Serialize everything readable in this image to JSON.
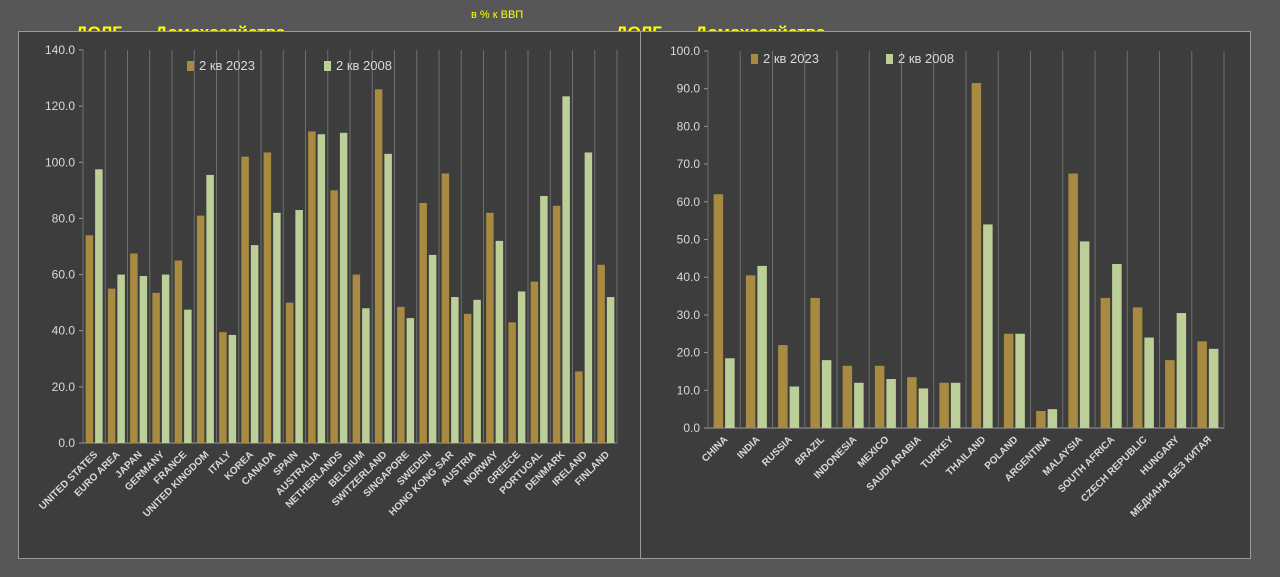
{
  "header": {
    "left_debt": "ДОЛГ",
    "left_sector": "__Домохозяйства",
    "unit_note": "в % к ВВП",
    "right_debt": "ДОЛГ",
    "right_sector": "__Домохозяйства"
  },
  "colors": {
    "series_2023": "#a88a40",
    "series_2008": "#bccf98",
    "axis_text": "#d9d9d9",
    "grid": "#6e6e6e"
  },
  "chart_data": [
    {
      "type": "bar",
      "title": "ДОЛГ __Домохозяйства",
      "ylim": [
        0,
        140
      ],
      "yticks": [
        "0.0",
        "20.0",
        "40.0",
        "60.0",
        "80.0",
        "100.0",
        "120.0",
        "140.0"
      ],
      "legend_position": "top",
      "categories": [
        "UNITED STATES",
        "EURO AREA",
        "JAPAN",
        "GERMANY",
        "FRANCE",
        "UNITED KINGDOM",
        "ITALY",
        "KOREA",
        "CANADA",
        "SPAIN",
        "AUSTRALIA",
        "NETHERLANDS",
        "BELGIUM",
        "SWITZERLAND",
        "SINGAPORE",
        "SWEDEN",
        "HONG KONG SAR",
        "AUSTRIA",
        "NORWAY",
        "GREECE",
        "PORTUGAL",
        "DENMARK",
        "IRELAND",
        "FINLAND"
      ],
      "series": [
        {
          "name": "2 кв 2023",
          "values": [
            74,
            55,
            67.5,
            53.5,
            65,
            81,
            39.5,
            102,
            103.5,
            50,
            111,
            90,
            60,
            126,
            48.5,
            85.5,
            96,
            46,
            82,
            43,
            57.5,
            84.5,
            25.5,
            63.5
          ]
        },
        {
          "name": "2 кв 2008",
          "values": [
            97.5,
            60,
            59.5,
            60,
            47.5,
            95.5,
            38.5,
            70.5,
            82,
            83,
            110,
            110.5,
            48,
            103,
            44.5,
            67,
            52,
            51,
            72,
            54,
            88,
            123.5,
            103.5,
            52
          ]
        }
      ]
    },
    {
      "type": "bar",
      "title": "ДОЛГ __Домохозяйства",
      "ylim": [
        0,
        100
      ],
      "yticks": [
        "0.0",
        "10.0",
        "20.0",
        "30.0",
        "40.0",
        "50.0",
        "60.0",
        "70.0",
        "80.0",
        "90.0",
        "100.0"
      ],
      "legend_position": "top",
      "categories": [
        "CHINA",
        "INDIA",
        "RUSSIA",
        "BRAZIL",
        "INDONESIA",
        "MEXICO",
        "SAUDI ARABIA",
        "TURKEY",
        "THAILAND",
        "POLAND",
        "ARGENTINA",
        "MALAYSIA",
        "SOUTH AFRICA",
        "CZECH REPUBLIC",
        "HUNGARY",
        "МЕДИАНА БЕЗ КИТАЯ"
      ],
      "series": [
        {
          "name": "2 кв 2023",
          "values": [
            62,
            40.5,
            22,
            34.5,
            16.5,
            16.5,
            13.5,
            12,
            91.5,
            25,
            4.5,
            67.5,
            34.5,
            32,
            18,
            23
          ]
        },
        {
          "name": "2 кв 2008",
          "values": [
            18.5,
            43,
            11,
            18,
            12,
            13,
            10.5,
            12,
            54,
            25,
            5,
            49.5,
            43.5,
            24,
            30.5,
            21
          ]
        }
      ]
    }
  ]
}
